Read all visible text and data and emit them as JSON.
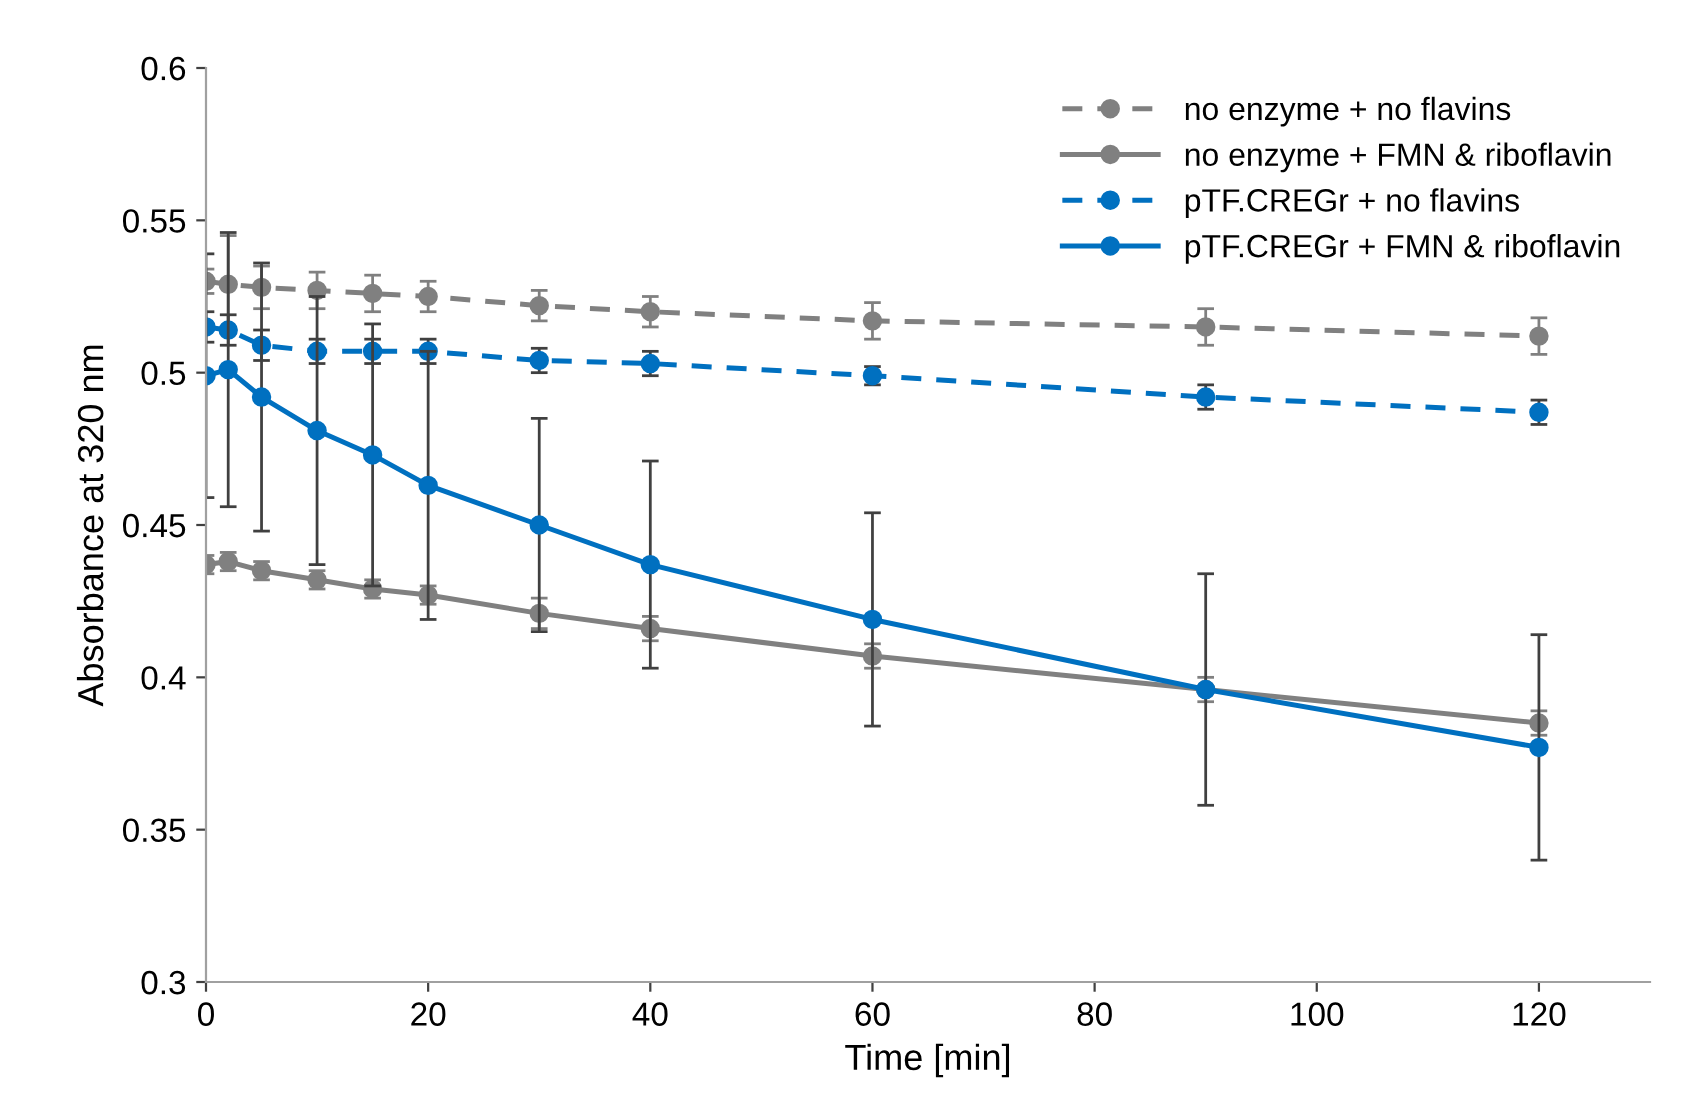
{
  "chart_data": {
    "type": "line",
    "xlabel": "Time [min]",
    "ylabel": "Absorbance at 320 nm",
    "x": [
      0,
      2,
      5,
      10,
      15,
      20,
      30,
      40,
      60,
      90,
      120
    ],
    "series": [
      {
        "name": "no enzyme + no flavins",
        "color": "#808080",
        "line_style": "dashed",
        "values": [
          0.53,
          0.529,
          0.528,
          0.527,
          0.526,
          0.525,
          0.522,
          0.52,
          0.517,
          0.515,
          0.512
        ],
        "errors": [
          0.004,
          0.016,
          0.007,
          0.006,
          0.006,
          0.005,
          0.005,
          0.005,
          0.006,
          0.006,
          0.006
        ]
      },
      {
        "name": "no enzyme + FMN & riboflavin",
        "color": "#808080",
        "line_style": "solid",
        "values": [
          0.437,
          0.438,
          0.435,
          0.432,
          0.429,
          0.427,
          0.421,
          0.416,
          0.407,
          0.396,
          0.385
        ],
        "errors": [
          0.003,
          0.003,
          0.003,
          0.003,
          0.003,
          0.003,
          0.005,
          0.004,
          0.004,
          0.004,
          0.004
        ]
      },
      {
        "name": "pTF.CREGr + no flavins",
        "color": "#0070c0",
        "line_style": "dashed",
        "values": [
          0.515,
          0.514,
          0.509,
          0.507,
          0.507,
          0.507,
          0.504,
          0.503,
          0.499,
          0.492,
          0.487
        ],
        "errors": [
          0.005,
          0.005,
          0.005,
          0.004,
          0.004,
          0.004,
          0.004,
          0.004,
          0.003,
          0.004,
          0.004
        ]
      },
      {
        "name": "pTF.CREGr + FMN & riboflavin",
        "color": "#0070c0",
        "line_style": "solid",
        "values": [
          0.499,
          0.501,
          0.492,
          0.481,
          0.473,
          0.463,
          0.45,
          0.437,
          0.419,
          0.396,
          0.377
        ],
        "errors": [
          0.04,
          0.045,
          0.044,
          0.044,
          0.043,
          0.044,
          0.035,
          0.034,
          0.035,
          0.038,
          0.037
        ]
      }
    ],
    "xlim": [
      0,
      130
    ],
    "xticks": [
      0,
      20,
      40,
      60,
      80,
      100,
      120
    ],
    "ylim": [
      0.3,
      0.6
    ],
    "yticks": [
      {
        "value": 0.3,
        "label": "0.3"
      },
      {
        "value": 0.35,
        "label": "0.35"
      },
      {
        "value": 0.4,
        "label": "0.4"
      },
      {
        "value": 0.45,
        "label": "0.45"
      },
      {
        "value": 0.5,
        "label": "0.5"
      },
      {
        "value": 0.55,
        "label": "0.55"
      },
      {
        "value": 0.6,
        "label": "0.6"
      }
    ],
    "marker": "circle",
    "grid": false,
    "legend": "top right"
  }
}
